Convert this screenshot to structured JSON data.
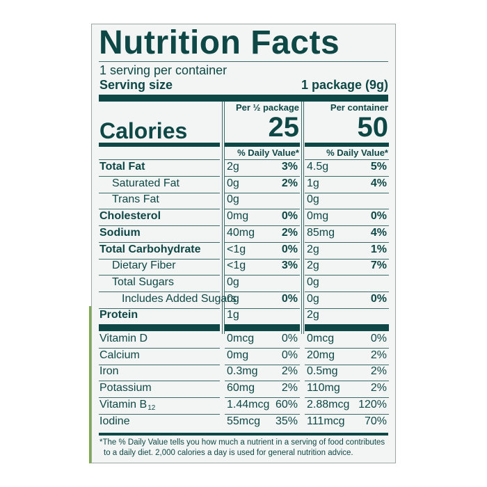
{
  "header": {
    "title": "Nutrition Facts",
    "servings": "1 serving per container",
    "serving_size_label": "Serving size",
    "serving_size": "1 package (9g)"
  },
  "calories_label": "Calories",
  "columns": [
    {
      "heading": "Per ½ package",
      "calories": 25,
      "dv_heading": "% Daily Value*"
    },
    {
      "heading": "Per container",
      "calories": 50,
      "dv_heading": "% Daily Value*"
    }
  ],
  "nutrients": [
    {
      "label": "Total Fat",
      "bold": true,
      "indent": 0,
      "values": [
        [
          "2g",
          "3%"
        ],
        [
          "4.5g",
          "5%"
        ]
      ]
    },
    {
      "label": "Saturated Fat",
      "bold": false,
      "indent": 1,
      "values": [
        [
          "0g",
          "2%"
        ],
        [
          "1g",
          "4%"
        ]
      ]
    },
    {
      "label": "Trans Fat",
      "bold": false,
      "indent": 1,
      "values": [
        [
          "0g",
          null
        ],
        [
          "0g",
          null
        ]
      ]
    },
    {
      "label": "Cholesterol",
      "bold": true,
      "indent": 0,
      "values": [
        [
          "0mg",
          "0%"
        ],
        [
          "0mg",
          "0%"
        ]
      ]
    },
    {
      "label": "Sodium",
      "bold": true,
      "indent": 0,
      "values": [
        [
          "40mg",
          "2%"
        ],
        [
          "85mg",
          "4%"
        ]
      ]
    },
    {
      "label": "Total Carbohydrate",
      "bold": true,
      "indent": 0,
      "values": [
        [
          "<1g",
          "0%"
        ],
        [
          "2g",
          "1%"
        ]
      ]
    },
    {
      "label": "Dietary Fiber",
      "bold": false,
      "indent": 1,
      "values": [
        [
          "<1g",
          "3%"
        ],
        [
          "2g",
          "7%"
        ]
      ]
    },
    {
      "label": "Total Sugars",
      "bold": false,
      "indent": 1,
      "values": [
        [
          "0g",
          null
        ],
        [
          "0g",
          null
        ]
      ]
    },
    {
      "label": "Includes Added Sugars",
      "bold": false,
      "indent": 2,
      "values": [
        [
          "0g",
          "0%"
        ],
        [
          "0g",
          "0%"
        ]
      ]
    },
    {
      "label": "Protein",
      "bold": true,
      "indent": 0,
      "values": [
        [
          "1g",
          null
        ],
        [
          "2g",
          null
        ]
      ]
    }
  ],
  "vitamins": [
    {
      "label": "Vitamin D",
      "values": [
        [
          "0mcg",
          "0%"
        ],
        [
          "0mcg",
          "0%"
        ]
      ]
    },
    {
      "label": "Calcium",
      "values": [
        [
          "0mg",
          "0%"
        ],
        [
          "20mg",
          "2%"
        ]
      ]
    },
    {
      "label": "Iron",
      "values": [
        [
          "0.3mg",
          "2%"
        ],
        [
          "0.5mg",
          "2%"
        ]
      ]
    },
    {
      "label": "Potassium",
      "values": [
        [
          "60mg",
          "2%"
        ],
        [
          "110mg",
          "2%"
        ]
      ]
    },
    {
      "label": "Vitamin B",
      "label_sub": "12",
      "values": [
        [
          "1.44mcg",
          "60%"
        ],
        [
          "2.88mcg",
          "120%"
        ]
      ]
    },
    {
      "label": "Iodine",
      "values": [
        [
          "55mcg",
          "35%"
        ],
        [
          "111mcg",
          "70%"
        ]
      ]
    }
  ],
  "footnote": [
    "*The % Daily Value tells you how much a nutrient in a serving of food contributes",
    "to a daily diet. 2,000 calories a day is used for general nutrition advice."
  ]
}
